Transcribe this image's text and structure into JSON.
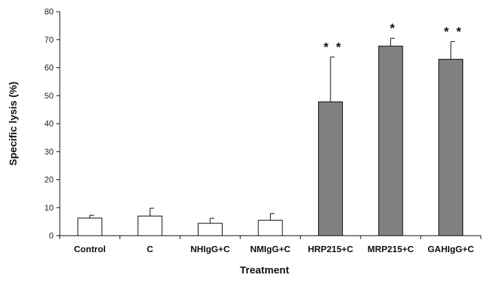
{
  "chart_data": {
    "type": "bar",
    "xlabel": "Treatment",
    "ylabel": "Specific lysis (%)",
    "ylim": [
      0,
      80
    ],
    "yticks": [
      0,
      10,
      20,
      30,
      40,
      50,
      60,
      70,
      80
    ],
    "grid": false,
    "legend": "none",
    "categories": [
      "Control",
      "C",
      "NHIgG+C",
      "NMIgG+C",
      "HRP215+C",
      "MRP215+C",
      "GAHIgG+C"
    ],
    "values": [
      6.3,
      7.0,
      4.4,
      5.5,
      47.8,
      67.7,
      63.0
    ],
    "errors": [
      1.0,
      2.8,
      1.8,
      2.4,
      16.0,
      2.8,
      6.3
    ],
    "significance": [
      "",
      "",
      "",
      "",
      "* *",
      "*",
      "* *"
    ],
    "fill_colors": [
      "#ffffff",
      "#ffffff",
      "#ffffff",
      "#ffffff",
      "#808080",
      "#808080",
      "#808080"
    ],
    "stroke_color": "#000000"
  }
}
